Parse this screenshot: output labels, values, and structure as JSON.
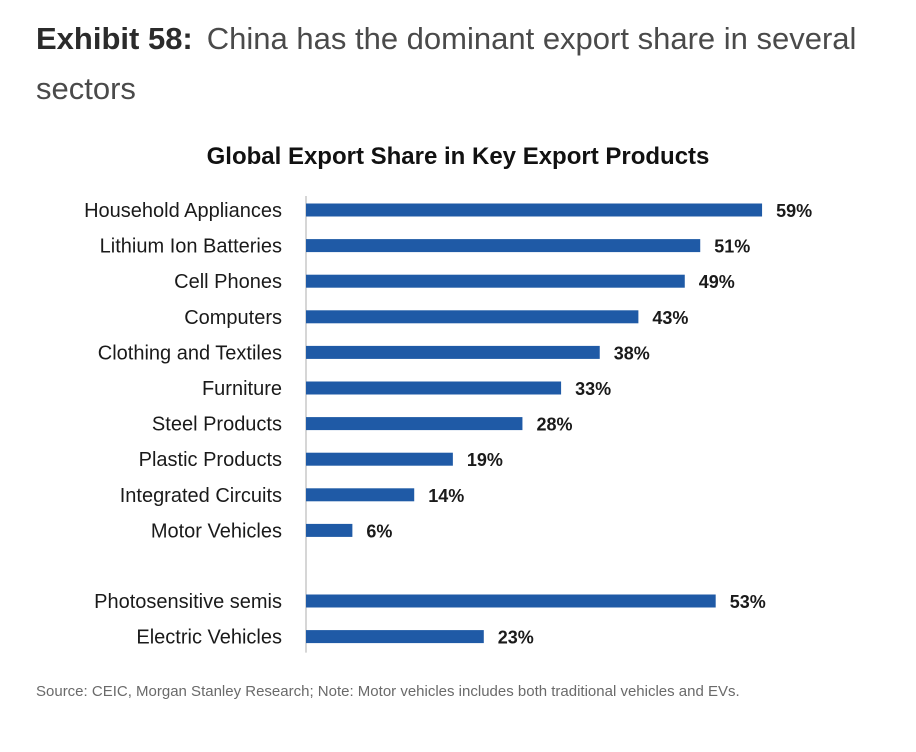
{
  "exhibit": {
    "number": "Exhibit 58:",
    "title": "China has the dominant export share in several sectors"
  },
  "chart_data": {
    "type": "bar",
    "orientation": "horizontal",
    "title": "Global Export Share in Key Export Products",
    "categories": [
      "Household Appliances",
      "Lithium Ion Batteries",
      "Cell Phones",
      "Computers",
      "Clothing and Textiles",
      "Furniture",
      "Steel Products",
      "Plastic Products",
      "Integrated Circuits",
      "Motor Vehicles",
      "Photosensitive semis",
      "Electric Vehicles"
    ],
    "values": [
      59,
      51,
      49,
      43,
      38,
      33,
      28,
      19,
      14,
      6,
      53,
      23
    ],
    "value_labels": [
      "59%",
      "51%",
      "49%",
      "43%",
      "38%",
      "33%",
      "28%",
      "19%",
      "14%",
      "6%",
      "53%",
      "23%"
    ],
    "groups": [
      [
        0,
        9
      ],
      [
        10,
        11
      ]
    ],
    "xlim": [
      0,
      100
    ],
    "grid": false,
    "legend": "none",
    "bar_color": "#1f5aa6"
  },
  "source_note": "Source: CEIC, Morgan Stanley Research; Note: Motor vehicles includes both traditional vehicles and EVs."
}
